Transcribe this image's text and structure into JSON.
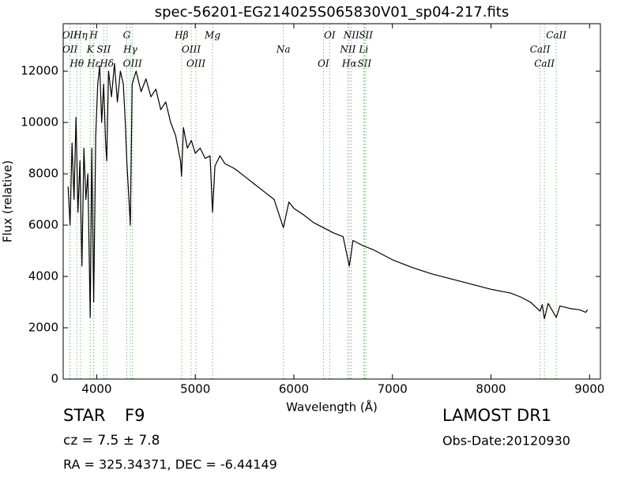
{
  "chart_data": {
    "type": "line",
    "title": "spec-56201-EG214025S065830V01_sp04-217.fits",
    "xlabel": "Wavelength (Å)",
    "ylabel": "Flux (relative)",
    "color": "#000000",
    "xlim": [
      3660,
      9110
    ],
    "ylim": [
      0,
      13850
    ],
    "xticks": [
      4000,
      5000,
      6000,
      7000,
      8000,
      9000
    ],
    "yticks": [
      0,
      2000,
      4000,
      6000,
      8000,
      10000,
      12000
    ],
    "x": [
      3710,
      3730,
      3750,
      3770,
      3790,
      3810,
      3830,
      3850,
      3870,
      3890,
      3910,
      3934,
      3950,
      3969,
      3990,
      4010,
      4030,
      4050,
      4070,
      4090,
      4102,
      4120,
      4150,
      4180,
      4210,
      4240,
      4270,
      4290,
      4305,
      4320,
      4341,
      4360,
      4400,
      4450,
      4500,
      4550,
      4600,
      4650,
      4700,
      4750,
      4800,
      4850,
      4861,
      4880,
      4920,
      4960,
      5000,
      5050,
      5100,
      5150,
      5175,
      5200,
      5250,
      5300,
      5400,
      5500,
      5600,
      5700,
      5800,
      5894,
      5950,
      6000,
      6100,
      6200,
      6300,
      6400,
      6500,
      6563,
      6600,
      6700,
      6800,
      6900,
      7000,
      7200,
      7400,
      7600,
      7800,
      8000,
      8200,
      8300,
      8400,
      8498,
      8520,
      8542,
      8580,
      8662,
      8700,
      8800,
      8900,
      8960,
      8980
    ],
    "values": [
      7500,
      6000,
      9200,
      7000,
      10200,
      6500,
      8500,
      4400,
      9000,
      7000,
      8000,
      2400,
      9000,
      3000,
      9500,
      11500,
      12200,
      10000,
      11500,
      9200,
      8500,
      12000,
      11000,
      12300,
      10800,
      12000,
      11500,
      10000,
      8500,
      7500,
      6000,
      11500,
      12000,
      11200,
      11700,
      11000,
      11300,
      10500,
      10800,
      10000,
      9500,
      8500,
      7900,
      9800,
      9000,
      9300,
      8800,
      9000,
      8600,
      8700,
      6500,
      8300,
      8700,
      8400,
      8200,
      7900,
      7600,
      7300,
      7000,
      5900,
      6900,
      6650,
      6400,
      6100,
      5900,
      5700,
      5550,
      4400,
      5400,
      5200,
      5050,
      4850,
      4650,
      4350,
      4100,
      3900,
      3700,
      3500,
      3350,
      3200,
      3000,
      2650,
      2900,
      2350,
      2950,
      2400,
      2850,
      2750,
      2700,
      2600,
      2700
    ],
    "line_color": "#7fbf7f",
    "line_labels": [
      {
        "label": "OII",
        "x": 3727
      },
      {
        "label": "OII",
        "x": 3729
      },
      {
        "label": "Hθ",
        "x": 3798
      },
      {
        "label": "Hη",
        "x": 3835
      },
      {
        "label": "K",
        "x": 3934
      },
      {
        "label": "Hε",
        "x": 3970
      },
      {
        "label": "H",
        "x": 3969
      },
      {
        "label": "SII",
        "x": 4072
      },
      {
        "label": "Hδ",
        "x": 4102
      },
      {
        "label": "G",
        "x": 4305
      },
      {
        "label": "Hγ",
        "x": 4341
      },
      {
        "label": "OIII",
        "x": 4363
      },
      {
        "label": "Hβ",
        "x": 4861
      },
      {
        "label": "OIII",
        "x": 4959
      },
      {
        "label": "OIII",
        "x": 5007
      },
      {
        "label": "Mg",
        "x": 5175
      },
      {
        "label": "Na",
        "x": 5894
      },
      {
        "label": "OI",
        "x": 6300
      },
      {
        "label": "OI",
        "x": 6364
      },
      {
        "label": "NII",
        "x": 6548
      },
      {
        "label": "Hα",
        "x": 6563
      },
      {
        "label": "NII",
        "x": 6583
      },
      {
        "label": "Li",
        "x": 6708
      },
      {
        "label": "SII",
        "x": 6716
      },
      {
        "label": "SII",
        "x": 6731
      },
      {
        "label": "CaII",
        "x": 8498
      },
      {
        "label": "CaII",
        "x": 8542
      },
      {
        "label": "CaII",
        "x": 8662
      }
    ]
  },
  "info": {
    "class": "STAR",
    "subclass": "F9",
    "cz": "cz = 7.5 ± 7.8",
    "survey": "LAMOST DR1",
    "obs_date": "Obs-Date:20120930",
    "coords": "RA = 325.34371, DEC = -6.44149"
  }
}
